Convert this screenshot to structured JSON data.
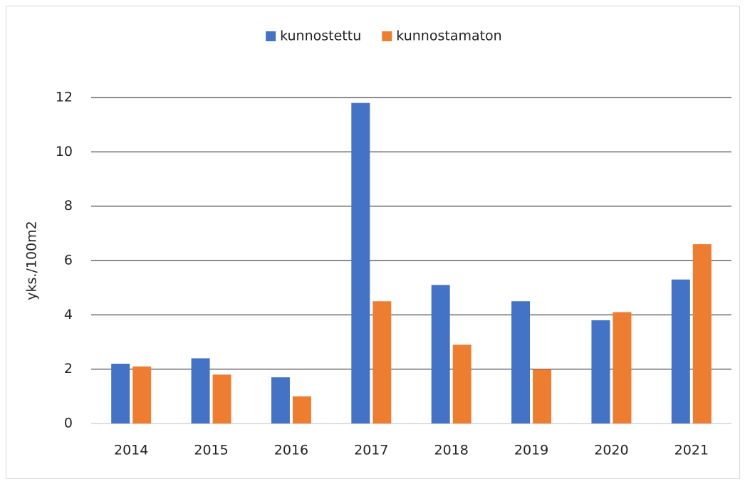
{
  "chart_data": {
    "type": "bar",
    "y_label": "yks./100m2",
    "categories": [
      "2014",
      "2015",
      "2016",
      "2017",
      "2018",
      "2019",
      "2020",
      "2021"
    ],
    "series": [
      {
        "name": "kunnostettu",
        "color": "#4472c4",
        "values": [
          2.2,
          2.4,
          1.7,
          11.8,
          5.1,
          4.5,
          3.8,
          5.3
        ]
      },
      {
        "name": "kunnostamaton",
        "color": "#ed7d31",
        "values": [
          2.1,
          1.8,
          1.0,
          4.5,
          2.9,
          2.0,
          4.1,
          6.6
        ]
      }
    ],
    "ylim": [
      0,
      12
    ],
    "yticks": [
      0,
      2,
      4,
      6,
      8,
      10,
      12
    ],
    "grid": true,
    "legend": "top"
  }
}
